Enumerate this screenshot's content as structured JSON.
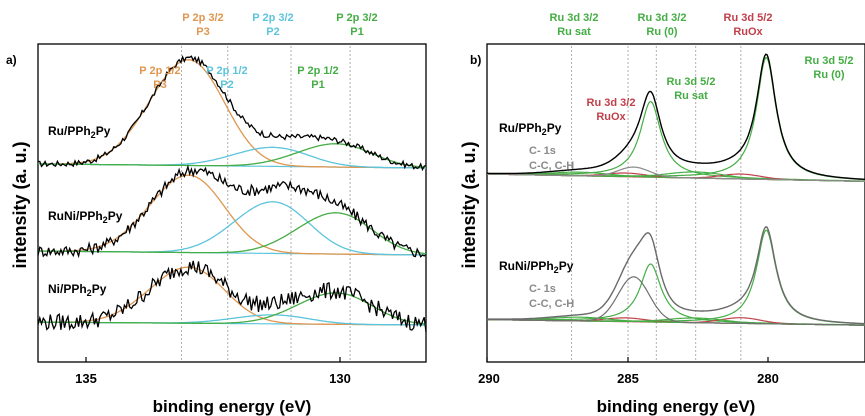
{
  "colors": {
    "P3": "#e0964e",
    "P2": "#5cc4dc",
    "P1": "#44ad44",
    "RuOx": "#c0404a",
    "Ru_dark": "#1f7a1f",
    "carbon": "#8a8a8a",
    "envelope": "#000000",
    "background_fit": "#5cc4dc",
    "guide": "#9a9a9a"
  },
  "panel_a": {
    "letter": "a)",
    "ylabel": "intensity (a. u.)",
    "xlabel": "binding energy (eV)",
    "ticks": [
      "135",
      "130"
    ],
    "labels_top": [
      {
        "l1": "P 2p 3/2",
        "l2": "P3",
        "color": "#e0964e"
      },
      {
        "l1": "P 2p 3/2",
        "l2": "P2",
        "color": "#5cc4dc"
      },
      {
        "l1": "P 2p 3/2",
        "l2": "P1",
        "color": "#44ad44"
      }
    ],
    "labels_inner": [
      {
        "l1": "P 2p 1/2",
        "l2": "P3",
        "color": "#e0964e"
      },
      {
        "l1": "P 2p 1/2",
        "l2": "P2",
        "color": "#5cc4dc"
      },
      {
        "l1": "P 2p 1/2",
        "l2": "P1",
        "color": "#44ad44"
      }
    ],
    "samples": [
      {
        "base": "Ru/PPh",
        "sub": "2",
        "tail": "Py"
      },
      {
        "base": "RuNi/PPh",
        "sub": "2",
        "tail": "Py"
      },
      {
        "base": "Ni/PPh",
        "sub": "2",
        "tail": "Py"
      }
    ]
  },
  "panel_b": {
    "letter": "b)",
    "ylabel": "intensity (a. u.)",
    "xlabel": "binding energy (eV)",
    "ticks": [
      "290",
      "285",
      "280"
    ],
    "labels": [
      {
        "l1": "Ru 3d 3/2",
        "l2": "Ru sat",
        "color": "#44ad44"
      },
      {
        "l1": "Ru 3d 3/2",
        "l2": "Ru (0)",
        "color": "#44ad44"
      },
      {
        "l1": "Ru 3d 5/2",
        "l2": "RuOx",
        "color": "#c0404a"
      },
      {
        "l1": "Ru 3d 5/2",
        "l2": "Ru (0)",
        "color": "#44ad44"
      },
      {
        "l1": "Ru 3d 5/2",
        "l2": "Ru sat",
        "color": "#44ad44"
      },
      {
        "l1": "Ru 3d 3/2",
        "l2": "RuOx",
        "color": "#c0404a"
      }
    ],
    "carbon_l1": "C- 1s",
    "carbon_l2": "C-C, C-H",
    "samples": [
      {
        "base": "Ru/PPh",
        "sub": "2",
        "tail": "Py"
      },
      {
        "base": "RuNi/PPh",
        "sub": "2",
        "tail": "Py"
      }
    ]
  },
  "chart_data": [
    {
      "type": "line",
      "panel": "a",
      "xlabel": "binding energy (eV)",
      "ylabel": "intensity (a. u.)",
      "xlim": [
        136.8,
        127.6
      ],
      "x_reversed": true,
      "y_units": "arbitrary",
      "components_eV": {
        "P3": 133.0,
        "P2": 131.0,
        "P1": 129.5
      },
      "spin_orbit_split_eV": 0.9,
      "guide_lines_eV": [
        133.4,
        132.3,
        130.8,
        129.4
      ],
      "samples": [
        {
          "name": "Ru/PPh2Py",
          "offset": 2.0,
          "scale": 0.75,
          "amplitudes": {
            "P3": 1.0,
            "P2": 0.18,
            "P1": 0.22
          },
          "noise": 0.03
        },
        {
          "name": "RuNi/PPh2Py",
          "offset": 1.0,
          "scale": 0.8,
          "amplitudes": {
            "P3": 0.75,
            "P2": 0.5,
            "P1": 0.4
          },
          "noise": 0.06
        },
        {
          "name": "Ni/PPh2Py",
          "offset": 0.0,
          "scale": 0.7,
          "amplitudes": {
            "P3": 0.75,
            "P2": 0.12,
            "P1": 0.42
          },
          "noise": 0.12
        }
      ]
    },
    {
      "type": "line",
      "panel": "b",
      "xlabel": "binding energy (eV)",
      "ylabel": "intensity (a. u.)",
      "xlim": [
        290,
        276.6
      ],
      "x_reversed": true,
      "y_units": "arbitrary",
      "peaks_eV": {
        "Ru0_5_2": 280.1,
        "Ru0_3_2": 284.2,
        "RuOx_5_2": 281.0,
        "RuOx_3_2": 285.1,
        "Rusat_5_2": 282.6,
        "Rusat_3_2": 286.7,
        "C1s": 284.8
      },
      "guide_lines_eV": [
        287.0,
        285.0,
        284.0,
        282.6,
        281.0
      ],
      "samples": [
        {
          "name": "Ru/PPh2Py",
          "offset": 1.0,
          "scale": 1.0,
          "amplitudes": {
            "Ru0_5_2": 1.0,
            "Ru0_3_2": 0.62,
            "RuOx_5_2": 0.04,
            "RuOx_3_2": 0.03,
            "Rusat_5_2": 0.05,
            "Rusat_3_2": 0.03,
            "C1s": 0.08
          }
        },
        {
          "name": "RuNi/PPh2Py",
          "offset": 0.0,
          "scale": 0.78,
          "amplitudes": {
            "Ru0_5_2": 1.0,
            "Ru0_3_2": 0.62,
            "RuOx_5_2": 0.06,
            "RuOx_3_2": 0.04,
            "Rusat_5_2": 0.05,
            "Rusat_3_2": 0.04,
            "C1s": 0.48
          }
        }
      ]
    }
  ]
}
